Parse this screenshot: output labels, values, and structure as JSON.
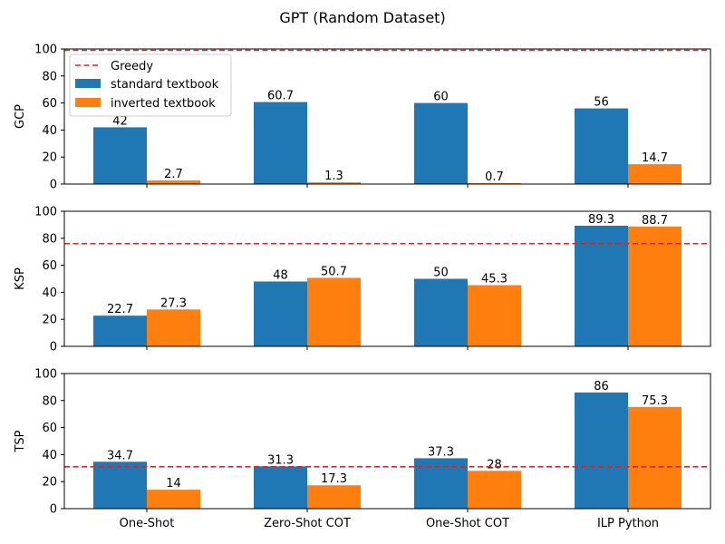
{
  "chart_data": {
    "type": "bar",
    "title": "GPT (Random Dataset)",
    "categories": [
      "One-Shot",
      "Zero-Shot COT",
      "One-Shot COT",
      "ILP Python"
    ],
    "series_meta": [
      {
        "name": "standard textbook",
        "color": "#1f77b4"
      },
      {
        "name": "inverted textbook",
        "color": "#ff7f0e"
      }
    ],
    "reference_line": {
      "name": "Greedy",
      "color": "#d62728",
      "style": "dashed"
    },
    "legend": {
      "subplot": "GCP",
      "placement": "upper-left"
    },
    "grid": false,
    "panels": [
      {
        "ylabel": "GCP",
        "ylim": [
          0,
          100
        ],
        "yticks": [
          0,
          20,
          40,
          60,
          80,
          100
        ],
        "greedy": 99,
        "series": [
          {
            "name": "standard textbook",
            "values": [
              42,
              60.7,
              60,
              56
            ],
            "labels": [
              "42",
              "60.7",
              "60",
              "56"
            ]
          },
          {
            "name": "inverted textbook",
            "values": [
              2.7,
              1.3,
              0.7,
              14.7
            ],
            "labels": [
              "2.7",
              "1.3",
              "0.7",
              "14.7"
            ]
          }
        ]
      },
      {
        "ylabel": "KSP",
        "ylim": [
          0,
          100
        ],
        "yticks": [
          0,
          20,
          40,
          60,
          80,
          100
        ],
        "greedy": 76,
        "series": [
          {
            "name": "standard textbook",
            "values": [
              22.7,
              48,
              50,
              89.3
            ],
            "labels": [
              "22.7",
              "48",
              "50",
              "89.3"
            ]
          },
          {
            "name": "inverted textbook",
            "values": [
              27.3,
              50.7,
              45.3,
              88.7
            ],
            "labels": [
              "27.3",
              "50.7",
              "45.3",
              "88.7"
            ]
          }
        ]
      },
      {
        "ylabel": "TSP",
        "ylim": [
          0,
          100
        ],
        "yticks": [
          0,
          20,
          40,
          60,
          80,
          100
        ],
        "greedy": 31,
        "series": [
          {
            "name": "standard textbook",
            "values": [
              34.7,
              31.3,
              37.3,
              86
            ],
            "labels": [
              "34.7",
              "31.3",
              "37.3",
              "86"
            ]
          },
          {
            "name": "inverted textbook",
            "values": [
              14,
              17.3,
              28,
              75.3
            ],
            "labels": [
              "14",
              "17.3",
              "28",
              "75.3"
            ]
          }
        ]
      }
    ]
  }
}
